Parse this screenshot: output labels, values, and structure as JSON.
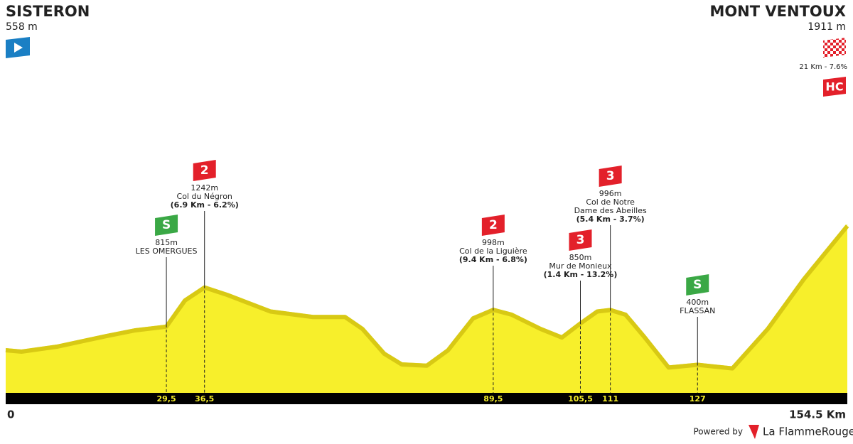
{
  "chart_data": {
    "type": "area",
    "start": {
      "name": "SISTERON",
      "altitude": {
        "value": 558,
        "label": "558 m"
      }
    },
    "finish": {
      "name": "MONT VENTOUX",
      "altitude": {
        "value": 1911,
        "label": "1911 m"
      },
      "detail": "21 Km - 7.6%",
      "sign": "HC",
      "color": "#e3202a"
    },
    "x": [
      0,
      2.9,
      9.4,
      18.5,
      23.8,
      29.5,
      32.9,
      36.5,
      40.7,
      48.6,
      56.4,
      62.3,
      65.5,
      69.5,
      72.7,
      77.3,
      81.2,
      85.8,
      89.5,
      92.9,
      98.2,
      102.1,
      105.5,
      108.6,
      111,
      113.8,
      117.1,
      121.7,
      127,
      133.4,
      139.9,
      146.5,
      154.5
    ],
    "values": [
      558,
      543,
      597,
      713,
      775,
      815,
      1100,
      1242,
      1160,
      980,
      920,
      920,
      790,
      520,
      404,
      390,
      558,
      905,
      998,
      945,
      790,
      697,
      850,
      980,
      996,
      945,
      713,
      370,
      400,
      360,
      790,
      1330,
      1911
    ],
    "color": "#f7ef2b",
    "xlim": [
      0,
      154.5
    ],
    "xticks": [
      0,
      {
        "value": 154.5,
        "label": "154.5 Km"
      }
    ],
    "markers": [
      {
        "sign": "S",
        "color": "#3aa845",
        "km": {
          "value": 29.5,
          "label": "29,5"
        },
        "altitude": {
          "value": 815,
          "label": "815m"
        },
        "name": [
          "LES OMERGUES"
        ]
      },
      {
        "sign": "2",
        "color": "#e3202a",
        "km": {
          "value": 36.5,
          "label": "36,5"
        },
        "altitude": {
          "value": 1242,
          "label": "1242m"
        },
        "name": [
          "Col du Négron"
        ],
        "detail": "(6.9 Km - 6.2%)"
      },
      {
        "sign": "2",
        "color": "#e3202a",
        "km": {
          "value": 89.5,
          "label": "89,5"
        },
        "altitude": {
          "value": 998,
          "label": "998m"
        },
        "name": [
          "Col de la Liguière"
        ],
        "detail": "(9.4 Km - 6.8%)"
      },
      {
        "sign": "3",
        "color": "#e3202a",
        "km": {
          "value": 105.5,
          "label": "105,5"
        },
        "altitude": {
          "value": 850,
          "label": "850m"
        },
        "name": [
          "Mur de Monieux"
        ],
        "detail": "(1.4 Km - 13.2%)"
      },
      {
        "sign": "3",
        "color": "#e3202a",
        "km": {
          "value": 111,
          "label": "111"
        },
        "altitude": {
          "value": 996,
          "label": "996m"
        },
        "name": [
          "Col de Notre",
          "Dame des Abeilles"
        ],
        "detail": "(5.4 Km - 3.7%)"
      },
      {
        "sign": "S",
        "color": "#3aa845",
        "km": {
          "value": 127,
          "label": "127"
        },
        "altitude": {
          "value": 400,
          "label": "400m"
        },
        "name": [
          "FLASSAN"
        ]
      }
    ],
    "credit": "Powered by",
    "brand": "La FlammeRouge"
  }
}
